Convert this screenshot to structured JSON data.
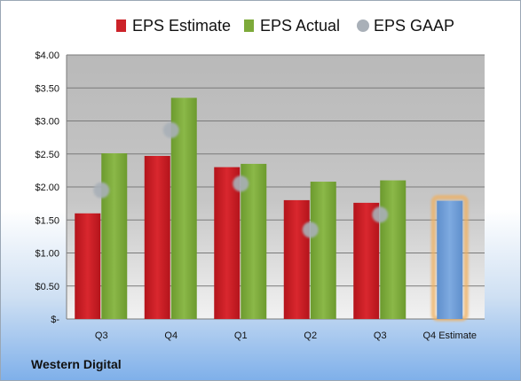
{
  "chart_data": {
    "type": "bar",
    "title": "",
    "xlabel": "",
    "ylabel": "",
    "categories": [
      "Q3",
      "Q4",
      "Q1",
      "Q2",
      "Q3",
      "Q4 Estimate"
    ],
    "series": [
      {
        "name": "EPS Estimate",
        "type": "bar",
        "color": "#cc2229",
        "values": [
          1.6,
          2.47,
          2.3,
          1.8,
          1.76,
          null
        ]
      },
      {
        "name": "EPS Actual",
        "type": "bar",
        "color": "#7daa3a",
        "values": [
          2.51,
          3.35,
          2.35,
          2.08,
          2.1,
          null
        ]
      },
      {
        "name": "EPS GAAP",
        "type": "scatter",
        "color": "#a9b0b8",
        "values": [
          1.95,
          2.86,
          2.05,
          1.35,
          1.58,
          null
        ]
      }
    ],
    "forecast": {
      "category": "Q4 Estimate",
      "value": 1.79,
      "color": "#6f9fd8",
      "glow": "#f0b060"
    },
    "ylim": [
      0,
      4
    ],
    "yticks": [
      0,
      0.5,
      1,
      1.5,
      2,
      2.5,
      3,
      3.5,
      4
    ],
    "ytick_labels": [
      "$-",
      "$0.50",
      "$1.00",
      "$1.50",
      "$2.00",
      "$2.50",
      "$3.00",
      "$3.50",
      "$4.00"
    ],
    "grid": true,
    "legend_position": "top"
  },
  "company_name": "Western Digital"
}
